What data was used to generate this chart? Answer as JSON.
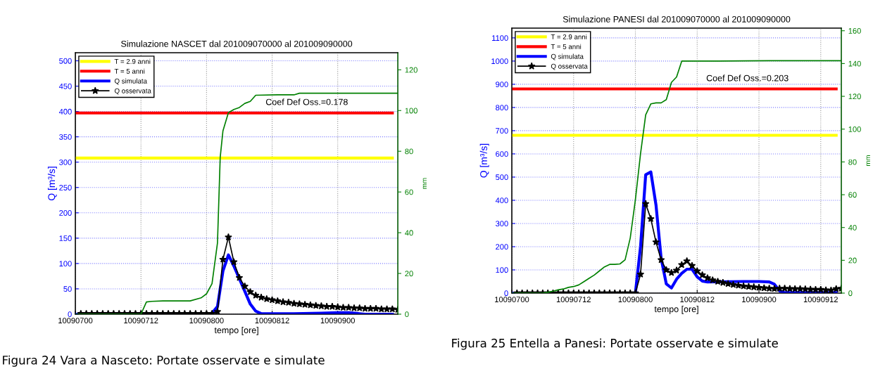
{
  "chart_data": [
    {
      "type": "line",
      "title": "Simulazione NASCET dal 201009070000 al 201009090000",
      "xlabel": "tempo [ore]",
      "ylabel": "Q [m³/s]",
      "y2label": "mm",
      "xlim": [
        "2010-09-07T00:00",
        "2010-09-09T11:00"
      ],
      "xticks": [
        {
          "value": "2010-09-07T00:00",
          "label": "10090700"
        },
        {
          "value": "2010-09-07T12:00",
          "label": "10090712"
        },
        {
          "value": "2010-09-08T00:00",
          "label": "10090800"
        },
        {
          "value": "2010-09-08T12:00",
          "label": "10090812"
        },
        {
          "value": "2010-09-09T00:00",
          "label": "10090900"
        }
      ],
      "ylim": [
        0,
        516
      ],
      "yticks": [
        0,
        50,
        100,
        150,
        200,
        250,
        300,
        350,
        400,
        450,
        500
      ],
      "y2lim": [
        0,
        128.4
      ],
      "y2ticks": [
        0,
        20,
        40,
        60,
        80,
        100,
        120
      ],
      "grid": true,
      "legend": "top left",
      "series": [
        {
          "name": "T = 2.9 anni",
          "color": "#ffff00",
          "x": [
            "2010-09-07T00:00",
            "2010-09-09T10:00"
          ],
          "values": [
            308,
            308
          ]
        },
        {
          "name": "T = 5 anni",
          "color": "#ff0000",
          "x": [
            "2010-09-07T00:00",
            "2010-09-09T10:00"
          ],
          "values": [
            397,
            397
          ]
        },
        {
          "name": "Q simulata",
          "color": "#0000ff",
          "x": [
            "2010-09-07T00:00",
            "2010-09-08T00:00",
            "2010-09-08T01:00",
            "2010-09-08T02:00",
            "2010-09-08T03:00",
            "2010-09-08T04:00",
            "2010-09-08T05:00",
            "2010-09-08T06:00",
            "2010-09-08T07:00",
            "2010-09-08T08:00",
            "2010-09-08T09:00",
            "2010-09-08T10:00",
            "2010-09-08T16:00",
            "2010-09-08T21:00",
            "2010-09-09T00:00",
            "2010-09-09T02:00",
            "2010-09-09T05:00",
            "2010-09-09T10:00"
          ],
          "values": [
            0,
            0,
            2,
            15,
            85,
            117,
            95,
            70,
            45,
            20,
            6,
            1,
            1,
            2,
            3,
            3,
            0,
            0
          ]
        },
        {
          "name": "Q osservata",
          "color": "#000000",
          "marker": "star",
          "x": [
            "2010-09-07T01:00",
            "2010-09-07T02:00",
            "2010-09-07T03:00",
            "2010-09-07T04:00",
            "2010-09-07T05:00",
            "2010-09-07T06:00",
            "2010-09-07T07:00",
            "2010-09-07T08:00",
            "2010-09-07T09:00",
            "2010-09-07T10:00",
            "2010-09-07T11:00",
            "2010-09-07T12:00",
            "2010-09-07T13:00",
            "2010-09-07T14:00",
            "2010-09-07T15:00",
            "2010-09-07T16:00",
            "2010-09-07T17:00",
            "2010-09-07T18:00",
            "2010-09-07T19:00",
            "2010-09-07T20:00",
            "2010-09-07T21:00",
            "2010-09-07T22:00",
            "2010-09-07T23:00",
            "2010-09-08T00:00",
            "2010-09-08T01:00",
            "2010-09-08T02:00",
            "2010-09-08T03:00",
            "2010-09-08T04:00",
            "2010-09-08T05:00",
            "2010-09-08T06:00",
            "2010-09-08T07:00",
            "2010-09-08T08:00",
            "2010-09-08T09:00",
            "2010-09-08T10:00",
            "2010-09-08T11:00",
            "2010-09-08T12:00",
            "2010-09-08T13:00",
            "2010-09-08T14:00",
            "2010-09-08T15:00",
            "2010-09-08T16:00",
            "2010-09-08T17:00",
            "2010-09-08T18:00",
            "2010-09-08T19:00",
            "2010-09-08T20:00",
            "2010-09-08T21:00",
            "2010-09-08T22:00",
            "2010-09-08T23:00",
            "2010-09-09T00:00",
            "2010-09-09T01:00",
            "2010-09-09T02:00",
            "2010-09-09T03:00",
            "2010-09-09T04:00",
            "2010-09-09T05:00",
            "2010-09-09T06:00",
            "2010-09-09T07:00",
            "2010-09-09T08:00",
            "2010-09-09T09:00",
            "2010-09-09T10:00",
            "2010-09-09T11:00"
          ],
          "values": [
            1,
            1,
            1,
            1,
            1,
            1,
            1,
            1,
            1,
            1,
            1,
            1,
            1,
            1,
            1,
            1,
            1,
            1,
            1,
            1,
            1,
            1,
            1,
            1,
            1,
            5,
            108,
            152,
            103,
            72,
            55,
            44,
            37,
            33,
            30,
            28,
            26,
            24,
            23,
            21,
            20,
            19,
            18,
            17,
            16,
            15,
            15,
            14,
            13,
            13,
            12,
            12,
            11,
            11,
            11,
            10,
            10,
            10,
            9
          ]
        },
        {
          "color": "#008000",
          "axis": "y2",
          "x": [
            "2010-09-07T00:00",
            "2010-09-07T12:00",
            "2010-09-07T13:00",
            "2010-09-07T14:00",
            "2010-09-07T16:00",
            "2010-09-07T21:00",
            "2010-09-07T23:00",
            "2010-09-08T00:00",
            "2010-09-08T01:00",
            "2010-09-08T02:00",
            "2010-09-08T02:30",
            "2010-09-08T03:00",
            "2010-09-08T04:00",
            "2010-09-08T05:00",
            "2010-09-08T06:00",
            "2010-09-08T07:00",
            "2010-09-08T08:00",
            "2010-09-08T09:00",
            "2010-09-08T13:00",
            "2010-09-08T16:00",
            "2010-09-08T17:00",
            "2010-09-09T11:00"
          ],
          "values": [
            0,
            0,
            6,
            6.3,
            6.5,
            6.5,
            8,
            10,
            15,
            35,
            77,
            90,
            99,
            100.5,
            101.5,
            103.5,
            104.5,
            107.5,
            107.7,
            107.7,
            108.5,
            108.5
          ]
        }
      ],
      "annotations": [
        "Coef Def Oss.=0.178",
        "Figura 24 Vara a Nasceto: Portate osservate e simulate"
      ]
    },
    {
      "type": "line",
      "title": "Simulazione PANESI dal 201009070000 al 201009090000",
      "xlabel": "tempo [ore]",
      "ylabel": "Q [m³/s]",
      "y2label": "mm",
      "xlim": [
        "2010-09-07T00:00",
        "2010-09-09T16:00"
      ],
      "xticks": [
        {
          "value": "2010-09-07T00:00",
          "label": "10090700"
        },
        {
          "value": "2010-09-07T12:00",
          "label": "10090712"
        },
        {
          "value": "2010-09-08T00:00",
          "label": "10090800"
        },
        {
          "value": "2010-09-08T12:00",
          "label": "10090812"
        },
        {
          "value": "2010-09-09T00:00",
          "label": "10090900"
        },
        {
          "value": "2010-09-09T12:00",
          "label": "10090912"
        }
      ],
      "ylim": [
        0,
        1142
      ],
      "yticks": [
        0,
        100,
        200,
        300,
        400,
        500,
        600,
        700,
        800,
        900,
        1000,
        1100
      ],
      "y2lim": [
        0,
        161.6
      ],
      "y2ticks": [
        0,
        20,
        40,
        60,
        80,
        100,
        120,
        140,
        160
      ],
      "grid": true,
      "legend": "top left",
      "series": [
        {
          "name": "T = 2.9 anni",
          "color": "#ffff00",
          "x": [
            "2010-09-07T00:00",
            "2010-09-09T15:00"
          ],
          "values": [
            680,
            680
          ]
        },
        {
          "name": "T = 5 anni",
          "color": "#ff0000",
          "x": [
            "2010-09-07T00:00",
            "2010-09-09T15:00"
          ],
          "values": [
            880,
            880
          ]
        },
        {
          "name": "Q simulata",
          "color": "#0000ff",
          "x": [
            "2010-09-07T00:00",
            "2010-09-08T00:00",
            "2010-09-08T01:00",
            "2010-09-08T02:00",
            "2010-09-08T03:00",
            "2010-09-08T04:00",
            "2010-09-08T05:00",
            "2010-09-08T06:00",
            "2010-09-08T07:00",
            "2010-09-08T08:00",
            "2010-09-08T09:00",
            "2010-09-08T10:00",
            "2010-09-08T11:00",
            "2010-09-08T12:00",
            "2010-09-08T13:00",
            "2010-09-08T14:00",
            "2010-09-08T21:00",
            "2010-09-09T00:00",
            "2010-09-09T02:00",
            "2010-09-09T03:00",
            "2010-09-09T04:00",
            "2010-09-09T05:00",
            "2010-09-09T15:00"
          ],
          "values": [
            0,
            0,
            200,
            510,
            522,
            380,
            150,
            40,
            22,
            60,
            85,
            103,
            103,
            70,
            52,
            48,
            50,
            50,
            48,
            38,
            10,
            2,
            2
          ]
        },
        {
          "name": "Q osservata",
          "color": "#000000",
          "marker": "star",
          "x": [
            "2010-09-07T01:00",
            "2010-09-07T02:00",
            "2010-09-07T03:00",
            "2010-09-07T04:00",
            "2010-09-07T05:00",
            "2010-09-07T06:00",
            "2010-09-07T07:00",
            "2010-09-07T08:00",
            "2010-09-07T09:00",
            "2010-09-07T10:00",
            "2010-09-07T11:00",
            "2010-09-07T12:00",
            "2010-09-07T13:00",
            "2010-09-07T14:00",
            "2010-09-07T15:00",
            "2010-09-07T16:00",
            "2010-09-07T17:00",
            "2010-09-07T18:00",
            "2010-09-07T19:00",
            "2010-09-07T20:00",
            "2010-09-07T21:00",
            "2010-09-07T22:00",
            "2010-09-07T23:00",
            "2010-09-08T00:00",
            "2010-09-08T01:00",
            "2010-09-08T02:00",
            "2010-09-08T03:00",
            "2010-09-08T04:00",
            "2010-09-08T05:00",
            "2010-09-08T06:00",
            "2010-09-08T07:00",
            "2010-09-08T08:00",
            "2010-09-08T09:00",
            "2010-09-08T10:00",
            "2010-09-08T11:00",
            "2010-09-08T12:00",
            "2010-09-08T13:00",
            "2010-09-08T14:00",
            "2010-09-08T15:00",
            "2010-09-08T16:00",
            "2010-09-08T17:00",
            "2010-09-08T18:00",
            "2010-09-08T19:00",
            "2010-09-08T20:00",
            "2010-09-08T21:00",
            "2010-09-08T22:00",
            "2010-09-08T23:00",
            "2010-09-09T00:00",
            "2010-09-09T01:00",
            "2010-09-09T02:00",
            "2010-09-09T03:00",
            "2010-09-09T04:00",
            "2010-09-09T05:00",
            "2010-09-09T06:00",
            "2010-09-09T07:00",
            "2010-09-09T08:00",
            "2010-09-09T09:00",
            "2010-09-09T10:00",
            "2010-09-09T11:00",
            "2010-09-09T12:00",
            "2010-09-09T13:00",
            "2010-09-09T14:00",
            "2010-09-09T15:00",
            "2010-09-09T16:00"
          ],
          "values": [
            0,
            0,
            0,
            0,
            0,
            0,
            0,
            0,
            0,
            0,
            0,
            0,
            0,
            0,
            0,
            0,
            0,
            0,
            0,
            0,
            0,
            0,
            0,
            0,
            81,
            385,
            320,
            220,
            143,
            100,
            88,
            98,
            122,
            138,
            118,
            95,
            78,
            65,
            56,
            50,
            45,
            40,
            36,
            33,
            30,
            28,
            26,
            24,
            22,
            20,
            19,
            20,
            20,
            19,
            18,
            18,
            17,
            16,
            15,
            15,
            13,
            12,
            18,
            20
          ]
        },
        {
          "color": "#008000",
          "axis": "y2",
          "x": [
            "2010-09-07T00:00",
            "2010-09-07T06:00",
            "2010-09-07T07:00",
            "2010-09-07T08:00",
            "2010-09-07T09:00",
            "2010-09-07T10:00",
            "2010-09-07T11:00",
            "2010-09-07T12:00",
            "2010-09-07T13:00",
            "2010-09-07T14:00",
            "2010-09-07T15:00",
            "2010-09-07T16:00",
            "2010-09-07T17:00",
            "2010-09-07T18:00",
            "2010-09-07T19:00",
            "2010-09-07T20:00",
            "2010-09-07T21:00",
            "2010-09-07T22:00",
            "2010-09-07T23:00",
            "2010-09-08T00:00",
            "2010-09-08T01:00",
            "2010-09-08T02:00",
            "2010-09-08T03:00",
            "2010-09-08T04:00",
            "2010-09-08T05:00",
            "2010-09-08T06:00",
            "2010-09-08T07:00",
            "2010-09-08T08:00",
            "2010-09-08T09:00",
            "2010-09-08T16:00",
            "2010-09-09T02:00",
            "2010-09-09T16:00"
          ],
          "values": [
            0,
            0,
            0.5,
            1.2,
            2,
            2.5,
            3.5,
            4,
            5,
            7,
            9,
            11,
            13.5,
            16,
            17.5,
            17.5,
            17.8,
            20.3,
            33.6,
            57,
            85,
            108.7,
            115.4,
            116,
            116,
            118,
            128.5,
            131.8,
            141.5,
            141.5,
            141.7,
            141.7
          ]
        }
      ],
      "annotations": [
        "Coef Def Oss.=0.203",
        "Figura 25 Entella a Panesi: Portate osservate e simulate"
      ]
    }
  ]
}
